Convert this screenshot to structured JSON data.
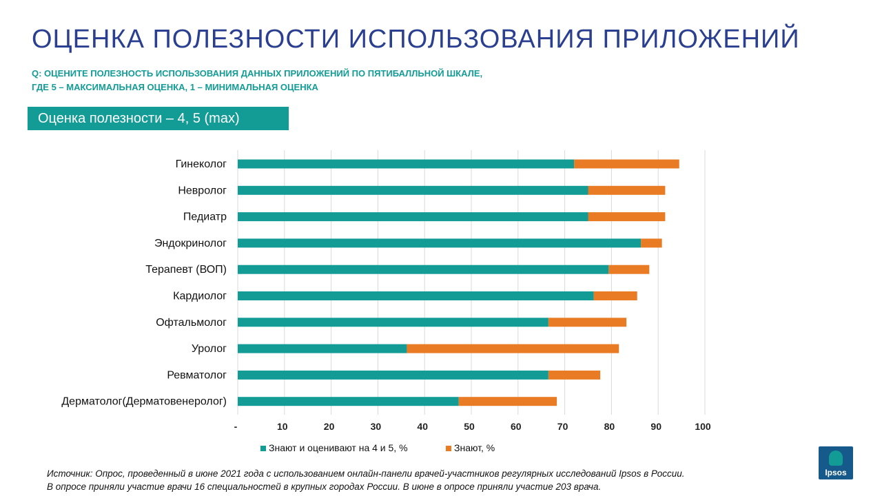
{
  "header": {
    "title": "ОЦЕНКА ПОЛЕЗНОСТИ ИСПОЛЬЗОВАНИЯ ПРИЛОЖЕНИЙ",
    "question_line1": "Q: ОЦЕНИТЕ ПОЛЕЗНОСТЬ ИСПОЛЬЗОВАНИЯ ДАННЫХ ПРИЛОЖЕНИЙ ПО ПЯТИБАЛЛЬНОЙ ШКАЛЕ,",
    "question_line2": "ГДЕ 5 – МАКСИМАЛЬНАЯ ОЦЕНКА, 1 – МИНИМАЛЬНАЯ ОЦЕНКА",
    "badge": "Оценка полезности – 4, 5 (max)"
  },
  "colors": {
    "teal": "#129c95",
    "orange": "#e87b24",
    "title_blue": "#2a3f8f",
    "grid": "#d9d9d9"
  },
  "chart_data": {
    "type": "bar",
    "orientation": "horizontal",
    "stacked": true,
    "categories": [
      "Гинеколог",
      "Невролог",
      "Педиатр",
      "Эндокринолог",
      "Терапевт (ВОП)",
      "Кардиолог",
      "Офтальмолог",
      "Уролог",
      "Ревматолог",
      "Дерматолог(Дерматовенеролог)"
    ],
    "series": [
      {
        "name": "Знают и оценивают на 4 и 5, %",
        "color": "#129c95",
        "values": [
          72,
          75,
          75,
          86.3,
          79.4,
          76.2,
          66.5,
          36.2,
          66.5,
          47.3
        ]
      },
      {
        "name": "Знают, %",
        "color": "#e87b24",
        "values": [
          22.5,
          16.5,
          16.5,
          4.5,
          8.7,
          9.3,
          16.7,
          45.4,
          11.1,
          21
        ]
      }
    ],
    "xlim": [
      0,
      100
    ],
    "xticks": [
      "-",
      "10",
      "20",
      "30",
      "40",
      "50",
      "60",
      "70",
      "80",
      "90",
      "100"
    ],
    "grid": true,
    "legend": "bottom"
  },
  "source": {
    "line1": "Источник: Опрос, проведенный в июне 2021 года с использованием онлайн-панели врачей-участников регулярных исследований Ipsos в России.",
    "line2": "В опросе приняли участие врачи 16 специальностей в крупных городах России. В июне в опросе приняли участие 203 врача."
  },
  "logo": {
    "text": "Ipsos"
  }
}
